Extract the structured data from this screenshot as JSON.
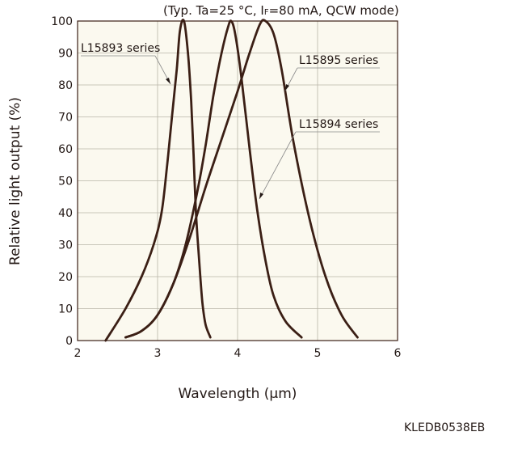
{
  "chart_data": {
    "type": "line",
    "condition_prefix": "(Typ. Ta=25 °C, I",
    "condition_subscript": "F",
    "condition_suffix": "=80 mA, QCW mode)",
    "xlabel": "Wavelength (μm)",
    "ylabel": "Relative light output (%)",
    "xlim": [
      2,
      6
    ],
    "ylim": [
      0,
      100
    ],
    "x_ticks": [
      2,
      3,
      4,
      5,
      6
    ],
    "y_ticks": [
      0,
      10,
      20,
      30,
      40,
      50,
      60,
      70,
      80,
      90,
      100
    ],
    "grid": true,
    "background": "#fbf9ef",
    "line_color": "#3b1f15",
    "series": [
      {
        "name": "L15893 series",
        "x": [
          2.35,
          2.6,
          2.8,
          2.95,
          3.05,
          3.12,
          3.18,
          3.24,
          3.28,
          3.33,
          3.38,
          3.42,
          3.45,
          3.48,
          3.52,
          3.56,
          3.6,
          3.66
        ],
        "y": [
          0,
          10,
          20,
          30,
          40,
          55,
          70,
          85,
          97,
          100,
          90,
          75,
          58,
          40,
          25,
          12,
          5,
          1
        ]
      },
      {
        "name": "L15894 series",
        "x": [
          2.6,
          2.8,
          3.0,
          3.2,
          3.35,
          3.5,
          3.6,
          3.7,
          3.8,
          3.88,
          3.92,
          3.97,
          4.05,
          4.15,
          4.25,
          4.35,
          4.45,
          4.6,
          4.8
        ],
        "y": [
          1,
          3,
          8,
          18,
          30,
          47,
          61,
          77,
          90,
          98,
          100,
          96,
          82,
          60,
          40,
          25,
          14,
          6,
          1
        ]
      },
      {
        "name": "L15895 series",
        "x": [
          2.6,
          2.8,
          3.0,
          3.2,
          3.4,
          3.6,
          3.8,
          4.0,
          4.15,
          4.28,
          4.35,
          4.45,
          4.55,
          4.7,
          4.9,
          5.1,
          5.3,
          5.5
        ],
        "y": [
          1,
          3,
          8,
          18,
          32,
          48,
          63,
          78,
          90,
          99,
          100,
          96,
          85,
          62,
          38,
          20,
          8,
          1
        ]
      }
    ],
    "figure_code": "KLEDB0538EB"
  }
}
